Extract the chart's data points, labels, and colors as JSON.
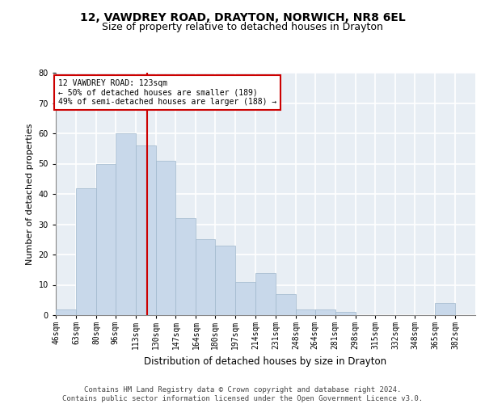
{
  "title1": "12, VAWDREY ROAD, DRAYTON, NORWICH, NR8 6EL",
  "title2": "Size of property relative to detached houses in Drayton",
  "xlabel": "Distribution of detached houses by size in Drayton",
  "ylabel": "Number of detached properties",
  "footer1": "Contains HM Land Registry data © Crown copyright and database right 2024.",
  "footer2": "Contains public sector information licensed under the Open Government Licence v3.0.",
  "bin_labels": [
    "46sqm",
    "63sqm",
    "80sqm",
    "96sqm",
    "113sqm",
    "130sqm",
    "147sqm",
    "164sqm",
    "180sqm",
    "197sqm",
    "214sqm",
    "231sqm",
    "248sqm",
    "264sqm",
    "281sqm",
    "298sqm",
    "315sqm",
    "332sqm",
    "348sqm",
    "365sqm",
    "382sqm"
  ],
  "bin_edges": [
    46,
    63,
    80,
    96,
    113,
    130,
    147,
    164,
    180,
    197,
    214,
    231,
    248,
    264,
    281,
    298,
    315,
    332,
    348,
    365,
    382,
    399
  ],
  "values": [
    2,
    42,
    50,
    60,
    56,
    51,
    32,
    25,
    23,
    11,
    14,
    7,
    2,
    2,
    1,
    0,
    0,
    0,
    0,
    4,
    0
  ],
  "bar_color": "#c8d8ea",
  "bar_edge_color": "#a0b8cc",
  "property_size": 123,
  "vline_color": "#cc0000",
  "annotation_text": "12 VAWDREY ROAD: 123sqm\n← 50% of detached houses are smaller (189)\n49% of semi-detached houses are larger (188) →",
  "annotation_box_color": "#ffffff",
  "annotation_box_edge": "#cc0000",
  "ylim": [
    0,
    80
  ],
  "yticks": [
    0,
    10,
    20,
    30,
    40,
    50,
    60,
    70,
    80
  ],
  "background_color": "#e8eef4",
  "grid_color": "#ffffff",
  "title1_fontsize": 10,
  "title2_fontsize": 9,
  "xlabel_fontsize": 8.5,
  "ylabel_fontsize": 8,
  "tick_fontsize": 7,
  "footer_fontsize": 6.5
}
